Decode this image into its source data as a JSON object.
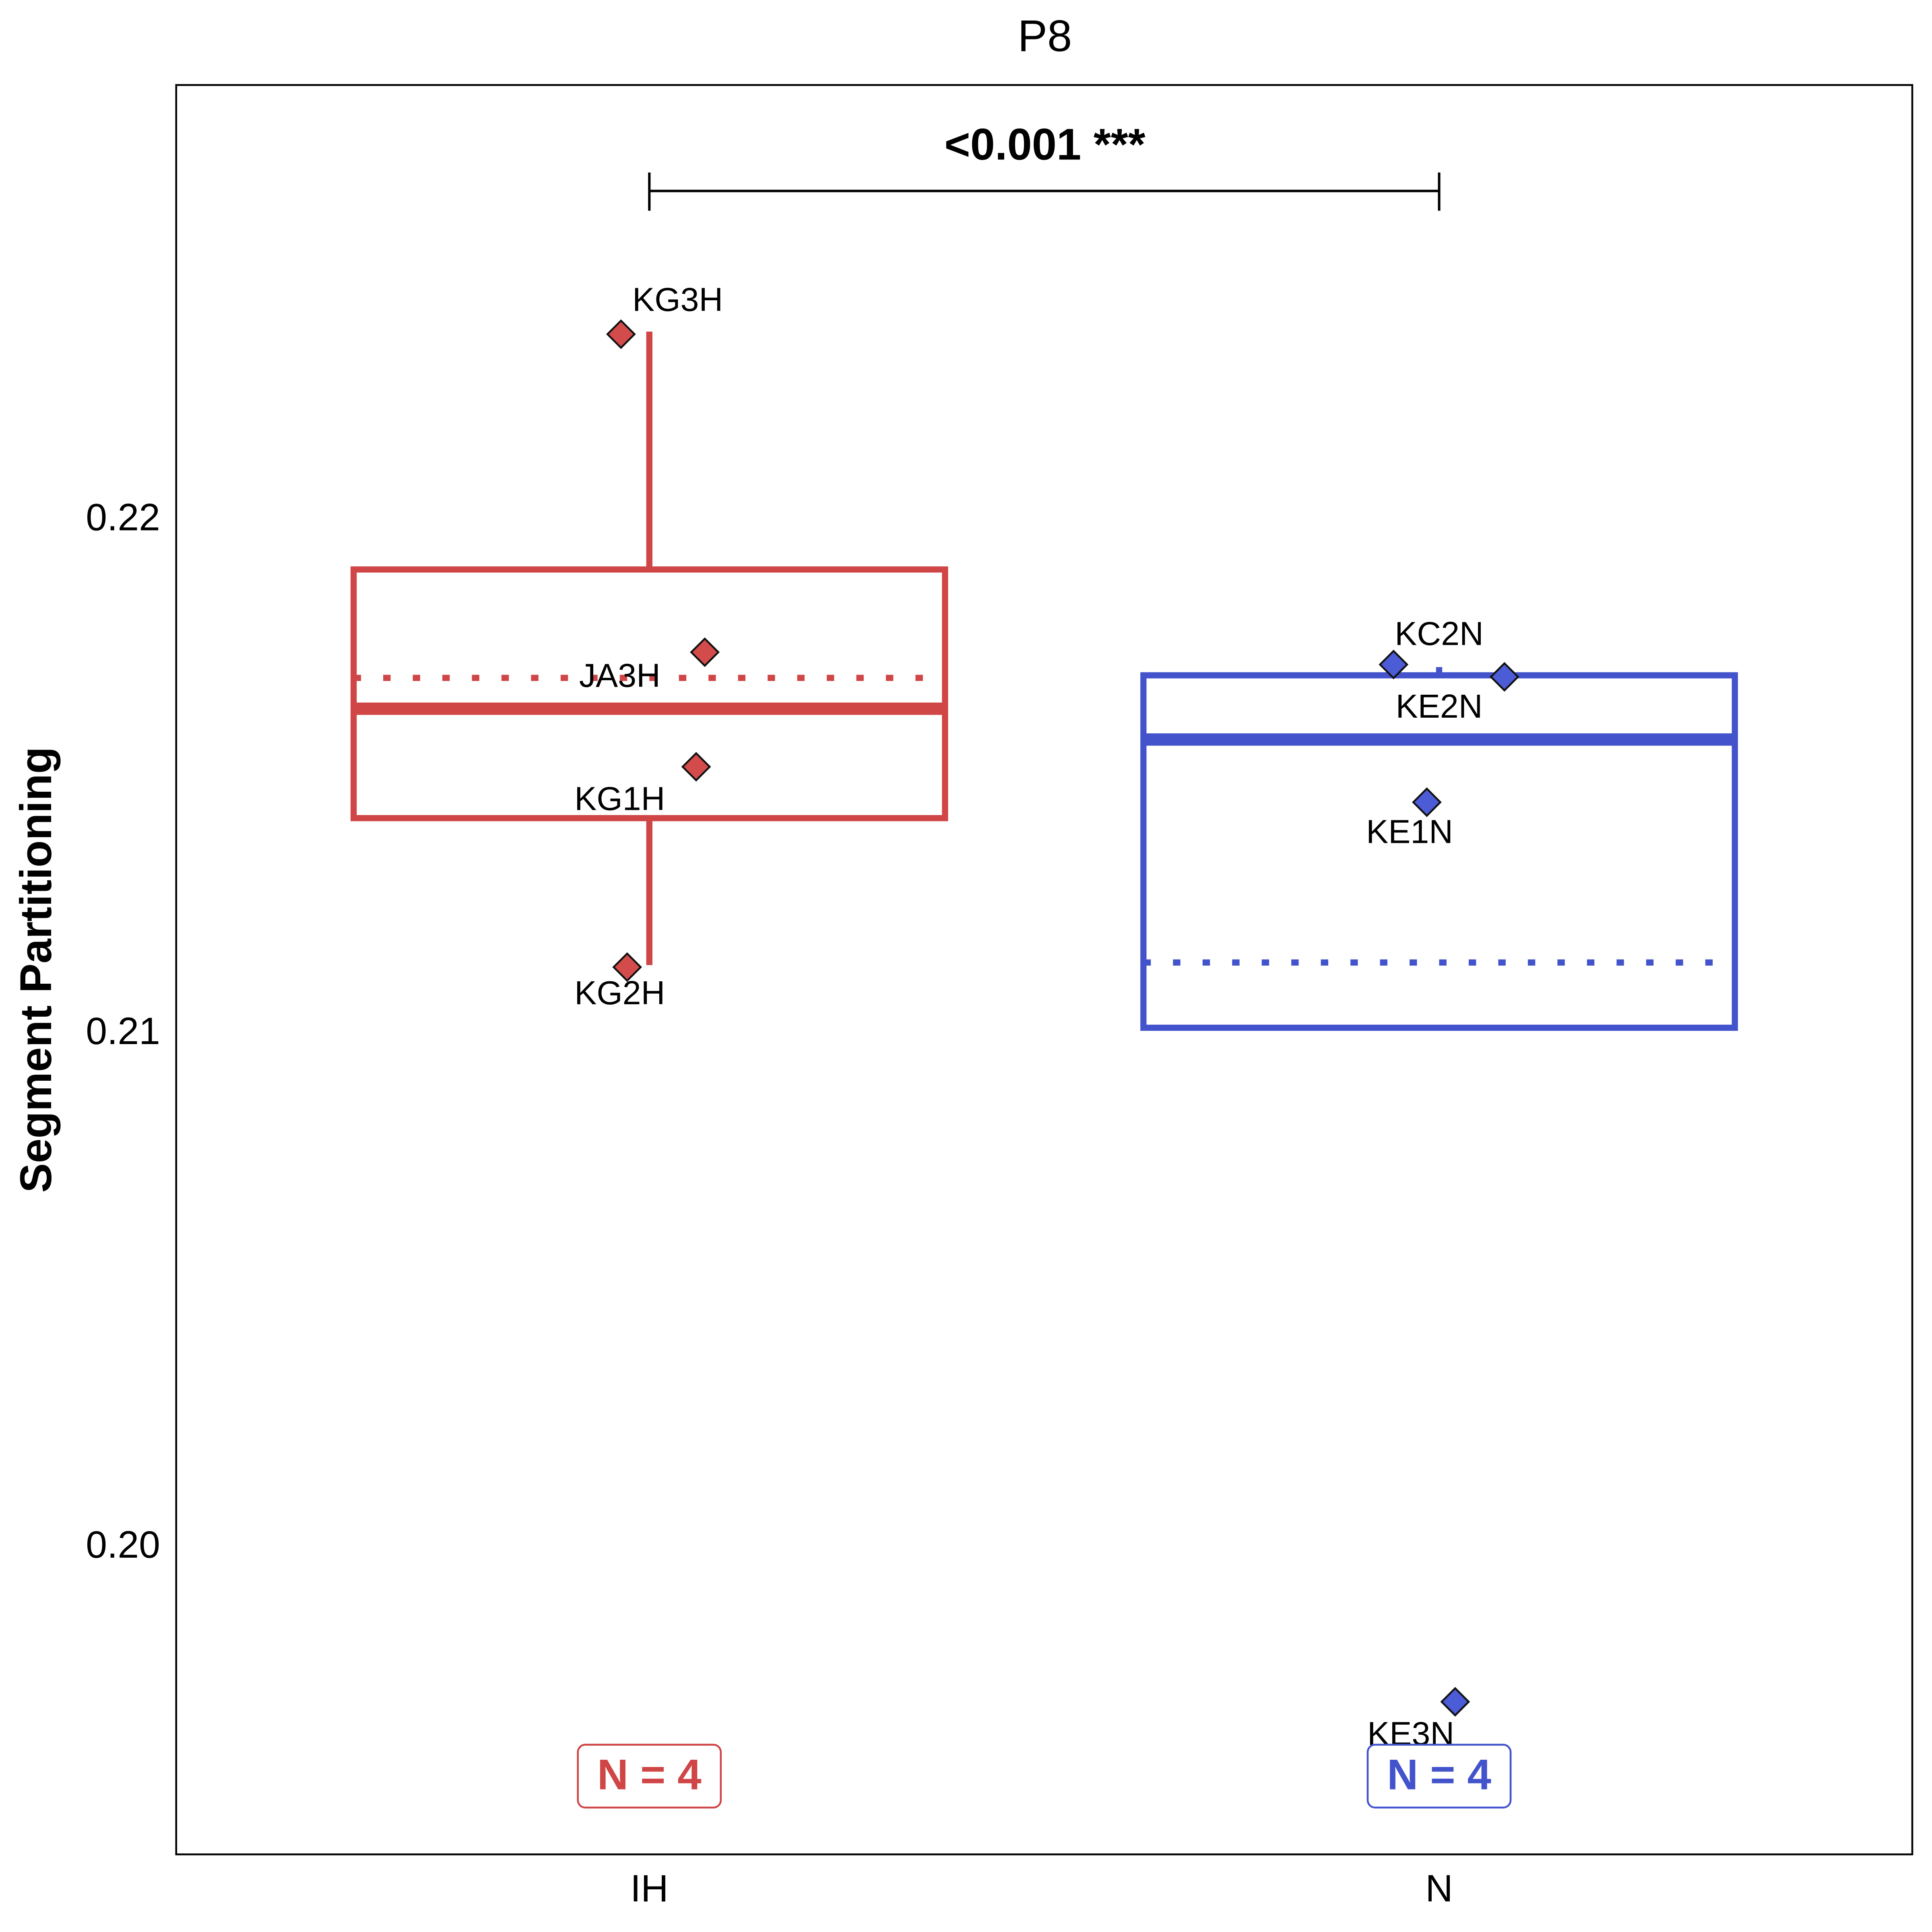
{
  "chart_data": {
    "type": "box",
    "title": "P8",
    "y_label": "Segment Partitioning",
    "categories": [
      "IH",
      "N"
    ],
    "ylim": [
      0.19403,
      0.22847
    ],
    "yticks": [
      {
        "value": 0.2,
        "label": "0.20"
      },
      0.21,
      0.22
    ],
    "grid": false,
    "groups": [
      {
        "color": "#d04545",
        "point_color": "#d44b4b",
        "whisker_low": 0.21134,
        "q1": 0.2142,
        "median": 0.21633,
        "q3": 0.21904,
        "whisker_high": 0.22367,
        "mean": 0.21693,
        "point_labels": [
          "KG3H",
          "JA3H",
          "KG1H",
          "KG2H"
        ],
        "values": [
          0.22362,
          0.21743,
          0.2152,
          0.2113
        ],
        "n_label": "N = 4"
      },
      {
        "color": "#4253cc",
        "point_color": "#4c5bd6",
        "whisker_low": null,
        "q1": 0.21012,
        "median": 0.21573,
        "q3": 0.21698,
        "whisker_high": 0.21714,
        "mean": 0.21139,
        "point_labels": [
          "KC2N",
          "KE2N",
          "KE1N",
          "KE3N"
        ],
        "values": [
          0.21719,
          0.21695,
          0.21451,
          0.197
        ],
        "n_label": "N = 4"
      }
    ],
    "significance": {
      "label": "<0.001 ***"
    }
  }
}
